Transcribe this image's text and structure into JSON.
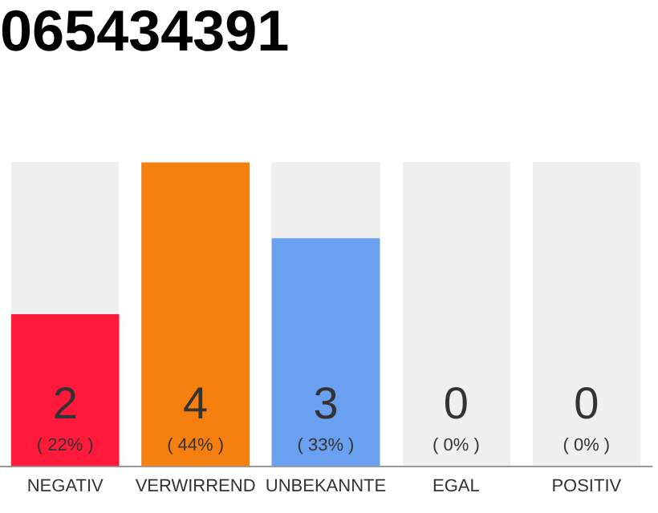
{
  "chart_data": {
    "type": "bar",
    "title": "065434391",
    "categories": [
      "NEGATIV",
      "VERWIRREND",
      "UNBEKANNTE",
      "EGAL",
      "POSITIV"
    ],
    "values": [
      2,
      4,
      3,
      0,
      0
    ],
    "colors": [
      "#ff1a3c",
      "#f57f0f",
      "#6aa0f0",
      "#cccccc",
      "#cccccc"
    ],
    "value_labels": [
      "2\n( 22% )",
      "4\n( 44% )",
      "3\n( 33% )",
      "0\n( 0% )",
      "0\n( 0% )"
    ],
    "grid": false,
    "legend": false
  }
}
